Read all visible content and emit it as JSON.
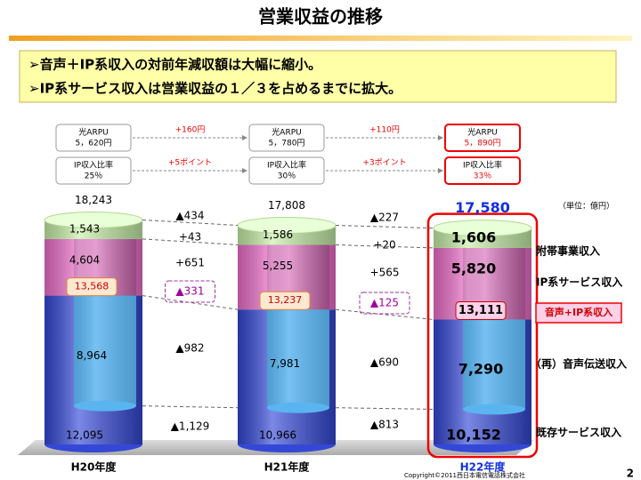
{
  "title": "営業収益の推移",
  "bullets": [
    "➢音声＋IP系収入の対前年減収額は大幅に縮小。",
    "➢IP系サービス収入は営業収益の１／３を占めるまでに拡大。"
  ],
  "kpis": {
    "arpu": {
      "label": "光ARPU",
      "values": [
        "5，620円",
        "5，780円",
        "5，890円"
      ],
      "changes": [
        "+160円",
        "+110円"
      ]
    },
    "ip_ratio": {
      "label": "IP収入比率",
      "values": [
        "25％",
        "30％",
        "33％"
      ],
      "changes": [
        "+5ポイント",
        "+3ポイント"
      ]
    }
  },
  "chart_data": {
    "type": "bar",
    "stacked": true,
    "unit": "（単位：億円）",
    "categories": [
      "H20年度",
      "H21年度",
      "H22年度"
    ],
    "ylim": [
      0,
      19000
    ],
    "series": [
      {
        "name": "既存サービス収入",
        "color": "#3448d8",
        "values": [
          12095,
          10966,
          10152
        ],
        "value_labels": [
          "12,095",
          "10,966",
          "10,152"
        ]
      },
      {
        "name": "IP系サービス収入",
        "color": "#f070cc",
        "values": [
          4604,
          5255,
          5820
        ],
        "value_labels": [
          "4,604",
          "5,255",
          "5,820"
        ]
      },
      {
        "name": "附帯事業収入",
        "color": "#c8f0a8",
        "values": [
          1543,
          1586,
          1606
        ],
        "value_labels": [
          "1,543",
          "1,586",
          "1,606"
        ]
      }
    ],
    "voice": {
      "name": "（再）音声伝送収入",
      "color": "#5ab4f0",
      "values": [
        8964,
        7981,
        7290
      ],
      "value_labels": [
        "8,964",
        "7,981",
        "7,290"
      ]
    },
    "combined": {
      "name": "音声+IP系収入",
      "values": [
        13568,
        13237,
        13111
      ],
      "value_labels": [
        "13,568",
        "13,237",
        "13,111"
      ]
    },
    "totals": {
      "values": [
        18243,
        17808,
        17580
      ],
      "value_labels": [
        "18,243",
        "17,808",
        "17,580"
      ]
    },
    "changes": [
      [
        "▲434",
        "+43",
        "+651",
        "▲331",
        "▲982",
        "▲1,129"
      ],
      [
        "▲227",
        "+20",
        "+565",
        "▲125",
        "▲690",
        "▲813"
      ]
    ]
  },
  "footer": {
    "copyright": "Copyright©2011西日本電信電話株式会社",
    "page": "2"
  }
}
